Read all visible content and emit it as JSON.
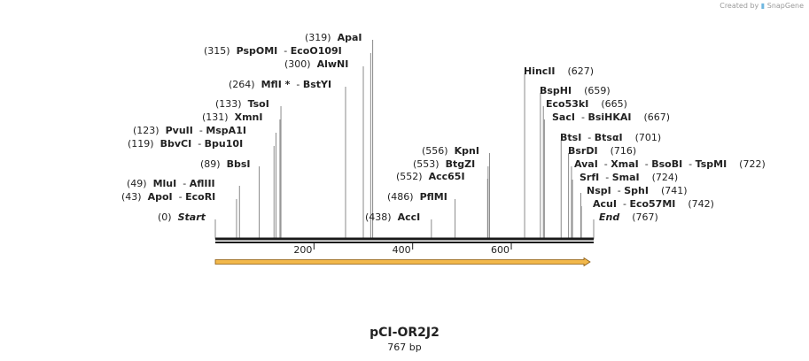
{
  "credit": {
    "text": "Created by",
    "brand": "SnapGene"
  },
  "plasmid": {
    "name": "pCI-OR2J2",
    "length_label": "767 bp",
    "length": 767
  },
  "ticks": [
    {
      "bp": 200,
      "label": "200"
    },
    {
      "bp": 400,
      "label": "400"
    },
    {
      "bp": 600,
      "label": "600"
    }
  ],
  "feature": {
    "start": 1,
    "end": 767,
    "color": "#f2b84b",
    "direction": "forward"
  },
  "sites": [
    {
      "pos_label": "(0)",
      "names": [
        "Start"
      ],
      "bp": 0,
      "end_marker": true
    },
    {
      "pos_label": "(43)",
      "names": [
        "ApoI",
        "EcoRI"
      ],
      "bp": 43
    },
    {
      "pos_label": "(49)",
      "names": [
        "MluI",
        "AflIII"
      ],
      "bp": 49
    },
    {
      "pos_label": "(89)",
      "names": [
        "BbsI"
      ],
      "bp": 89
    },
    {
      "pos_label": "(119)",
      "names": [
        "BbvCI",
        "Bpu10I"
      ],
      "bp": 119
    },
    {
      "pos_label": "(123)",
      "names": [
        "PvuII",
        "MspA1I"
      ],
      "bp": 123
    },
    {
      "pos_label": "(131)",
      "names": [
        "XmnI"
      ],
      "bp": 131
    },
    {
      "pos_label": "(133)",
      "names": [
        "TsoI"
      ],
      "bp": 133
    },
    {
      "pos_label": "(264)",
      "names": [
        "MflI *",
        "BstYI"
      ],
      "bp": 264
    },
    {
      "pos_label": "(300)",
      "names": [
        "AlwNI"
      ],
      "bp": 300
    },
    {
      "pos_label": "(315)",
      "names": [
        "PspOMI",
        "EcoO109I"
      ],
      "bp": 315
    },
    {
      "pos_label": "(319)",
      "names": [
        "ApaI"
      ],
      "bp": 319
    },
    {
      "pos_label": "(438)",
      "names": [
        "AccI"
      ],
      "bp": 438
    },
    {
      "pos_label": "(486)",
      "names": [
        "PflMI"
      ],
      "bp": 486
    },
    {
      "pos_label": "(552)",
      "names": [
        "Acc65I"
      ],
      "bp": 552
    },
    {
      "pos_label": "(553)",
      "names": [
        "BtgZI"
      ],
      "bp": 553
    },
    {
      "pos_label": "(556)",
      "names": [
        "KpnI"
      ],
      "bp": 556
    },
    {
      "pos_label": "(627)",
      "names": [
        "HincII"
      ],
      "bp": 627
    },
    {
      "pos_label": "(659)",
      "names": [
        "BspHI"
      ],
      "bp": 659
    },
    {
      "pos_label": "(665)",
      "names": [
        "Eco53kI"
      ],
      "bp": 665
    },
    {
      "pos_label": "(667)",
      "names": [
        "SacI",
        "BsiHKAI"
      ],
      "bp": 667
    },
    {
      "pos_label": "(701)",
      "names": [
        "BtsI",
        "BtsαI"
      ],
      "bp": 701
    },
    {
      "pos_label": "(716)",
      "names": [
        "BsrDI"
      ],
      "bp": 716
    },
    {
      "pos_label": "(722)",
      "names": [
        "AvaI",
        "XmaI",
        "BsoBI",
        "TspMI"
      ],
      "bp": 722
    },
    {
      "pos_label": "(724)",
      "names": [
        "SrfI",
        "SmaI"
      ],
      "bp": 724
    },
    {
      "pos_label": "(741)",
      "names": [
        "NspI",
        "SphI"
      ],
      "bp": 741
    },
    {
      "pos_label": "(742)",
      "names": [
        "AcuI",
        "Eco57MI"
      ],
      "bp": 742
    },
    {
      "pos_label": "(767)",
      "names": [
        "End"
      ],
      "bp": 767,
      "end_marker": true
    }
  ]
}
